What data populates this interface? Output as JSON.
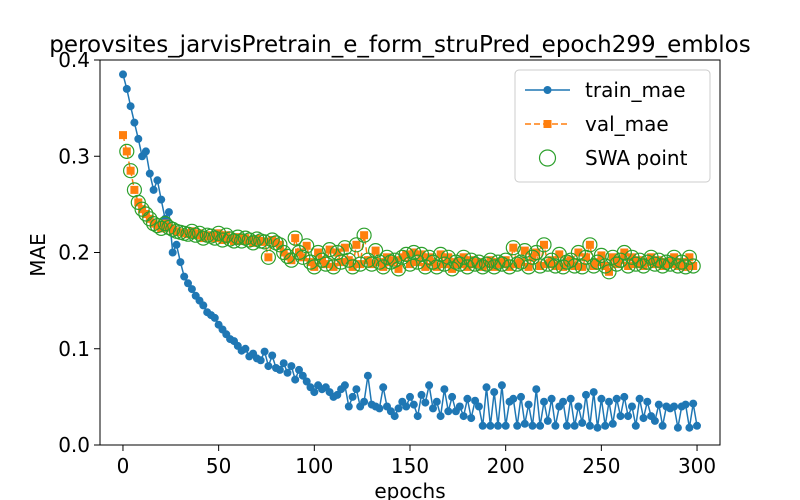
{
  "chart_data": {
    "type": "line",
    "title": "perovsites_jarvisPretrain_e_form_struPred_epoch299_emblos",
    "xlabel": "epochs",
    "ylabel": "MAE",
    "xlim": [
      -12,
      312
    ],
    "ylim": [
      0,
      0.4
    ],
    "x_ticks": [
      0,
      50,
      100,
      150,
      200,
      250,
      300
    ],
    "y_ticks": [
      0.0,
      0.1,
      0.2,
      0.3,
      0.4
    ],
    "x_tick_labels": [
      "0",
      "50",
      "100",
      "150",
      "200",
      "250",
      "300"
    ],
    "y_tick_labels": [
      "0.0",
      "0.1",
      "0.2",
      "0.3",
      "0.4"
    ],
    "grid": false,
    "legend_position": "top-right",
    "series": [
      {
        "name": "train_mae",
        "color": "#1f77b4",
        "marker": "circle",
        "line": "solid",
        "x_start": 0,
        "x_step": 2,
        "values": [
          0.385,
          0.37,
          0.352,
          0.335,
          0.318,
          0.3,
          0.305,
          0.282,
          0.265,
          0.275,
          0.255,
          0.235,
          0.242,
          0.2,
          0.208,
          0.19,
          0.175,
          0.168,
          0.162,
          0.155,
          0.15,
          0.145,
          0.138,
          0.135,
          0.132,
          0.125,
          0.12,
          0.115,
          0.11,
          0.108,
          0.103,
          0.098,
          0.1,
          0.092,
          0.095,
          0.09,
          0.088,
          0.097,
          0.082,
          0.093,
          0.08,
          0.078,
          0.085,
          0.075,
          0.082,
          0.068,
          0.078,
          0.072,
          0.066,
          0.06,
          0.055,
          0.062,
          0.058,
          0.06,
          0.055,
          0.05,
          0.052,
          0.058,
          0.062,
          0.04,
          0.05,
          0.058,
          0.04,
          0.045,
          0.072,
          0.042,
          0.04,
          0.038,
          0.06,
          0.04,
          0.035,
          0.03,
          0.038,
          0.045,
          0.04,
          0.05,
          0.042,
          0.03,
          0.052,
          0.044,
          0.062,
          0.038,
          0.045,
          0.03,
          0.058,
          0.035,
          0.05,
          0.035,
          0.04,
          0.03,
          0.048,
          0.028,
          0.046,
          0.04,
          0.02,
          0.06,
          0.02,
          0.055,
          0.02,
          0.062,
          0.02,
          0.045,
          0.048,
          0.02,
          0.05,
          0.022,
          0.042,
          0.02,
          0.058,
          0.02,
          0.045,
          0.025,
          0.048,
          0.02,
          0.04,
          0.045,
          0.02,
          0.048,
          0.02,
          0.04,
          0.023,
          0.052,
          0.02,
          0.055,
          0.018,
          0.048,
          0.02,
          0.045,
          0.022,
          0.048,
          0.03,
          0.05,
          0.03,
          0.04,
          0.02,
          0.048,
          0.028,
          0.045,
          0.03,
          0.025,
          0.042,
          0.02,
          0.04,
          0.038,
          0.04,
          0.018,
          0.04,
          0.042,
          0.018,
          0.043,
          0.02
        ]
      },
      {
        "name": "val_mae",
        "color": "#ff7f0e",
        "marker": "square",
        "line": "dashed",
        "x_start": 0,
        "x_step": 2,
        "values": [
          0.322,
          0.305,
          0.285,
          0.265,
          0.252,
          0.245,
          0.24,
          0.235,
          0.23,
          0.228,
          0.225,
          0.23,
          0.226,
          0.224,
          0.222,
          0.221,
          0.22,
          0.219,
          0.222,
          0.218,
          0.22,
          0.215,
          0.218,
          0.217,
          0.215,
          0.22,
          0.213,
          0.218,
          0.214,
          0.212,
          0.216,
          0.212,
          0.215,
          0.213,
          0.21,
          0.214,
          0.212,
          0.211,
          0.195,
          0.213,
          0.21,
          0.208,
          0.2,
          0.196,
          0.192,
          0.215,
          0.2,
          0.195,
          0.207,
          0.19,
          0.185,
          0.2,
          0.192,
          0.188,
          0.203,
          0.185,
          0.2,
          0.19,
          0.205,
          0.192,
          0.185,
          0.208,
          0.188,
          0.218,
          0.192,
          0.188,
          0.202,
          0.19,
          0.185,
          0.195,
          0.19,
          0.192,
          0.183,
          0.195,
          0.198,
          0.188,
          0.2,
          0.19,
          0.198,
          0.185,
          0.195,
          0.19,
          0.185,
          0.198,
          0.188,
          0.195,
          0.183,
          0.19,
          0.188,
          0.195,
          0.185,
          0.192,
          0.188,
          0.19,
          0.185,
          0.188,
          0.192,
          0.185,
          0.19,
          0.188,
          0.192,
          0.185,
          0.205,
          0.188,
          0.19,
          0.202,
          0.185,
          0.195,
          0.2,
          0.186,
          0.208,
          0.188,
          0.192,
          0.186,
          0.198,
          0.185,
          0.19,
          0.192,
          0.186,
          0.2,
          0.185,
          0.195,
          0.208,
          0.186,
          0.19,
          0.197,
          0.186,
          0.18,
          0.195,
          0.188,
          0.192,
          0.2,
          0.186,
          0.195,
          0.188,
          0.192,
          0.186,
          0.19,
          0.195,
          0.188,
          0.192,
          0.186,
          0.19,
          0.188,
          0.195,
          0.186,
          0.19,
          0.185,
          0.195,
          0.186
        ]
      }
    ],
    "swa_points": {
      "name": "SWA point",
      "color": "#2ca02c",
      "marker": "hollow-circle",
      "follows_series": "val_mae",
      "start_index": 1
    }
  }
}
